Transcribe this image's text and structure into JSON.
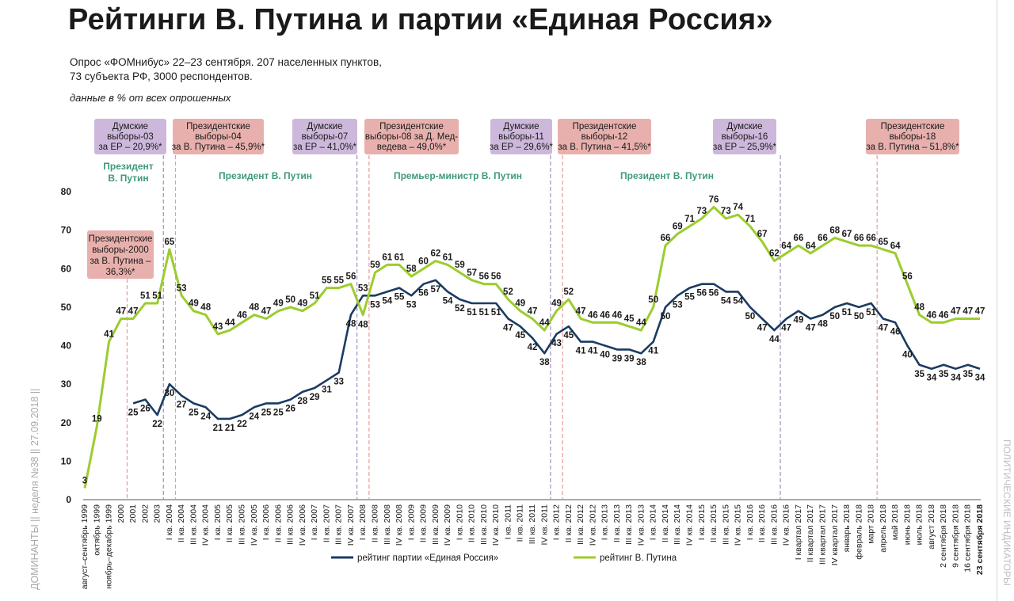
{
  "page": {
    "title": "Рейтинги В. Путина и партии «Единая Россия»",
    "subtitle_line1": "Опрос «ФОМнибус» 22–23 сентября. 207 населенных пунктов,",
    "subtitle_line2": "73 субъекта РФ, 3000 респондентов.",
    "units_note": "данные в % от всех опрошенных",
    "side_left": "ДОМИНАНТЫ || неделя №38 || 27.09.2018 ||",
    "side_right": "ПОЛИТИЧЕСКИЕ ИНДИКАТОРЫ"
  },
  "colors": {
    "er": "#1b3b63",
    "putin": "#9ccc2e",
    "duma_box": "#cdb8dc",
    "pres_box": "#e8b0ad",
    "duma_line": "#9c8fc0",
    "pres_line": "#e89a9a",
    "period_text": "#3f9a7c"
  },
  "chart_data": {
    "type": "line",
    "ylim": [
      0,
      80
    ],
    "yticks": [
      0,
      10,
      20,
      30,
      40,
      50,
      60,
      70,
      80
    ],
    "x_labels": [
      "август–сентябрь 1999",
      "октябрь 1999",
      "ноябрь–декабрь 1999",
      "2000",
      "2001",
      "2002",
      "2003",
      "I кв. 2004",
      "II кв. 2004",
      "III кв. 2004",
      "IV кв. 2004",
      "I кв. 2005",
      "II кв. 2005",
      "III кв. 2005",
      "IV кв. 2005",
      "I кв. 2006",
      "II кв. 2006",
      "III кв. 2006",
      "IV кв. 2006",
      "I кв. 2007",
      "II кв. 2007",
      "III кв. 2007",
      "IV кв. 2007",
      "I кв. 2008",
      "II кв. 2008",
      "III кв. 2008",
      "IV кв. 2008",
      "I кв. 2009",
      "II кв. 2009",
      "III кв. 2009",
      "IV кв. 2009",
      "I кв. 2010",
      "II кв. 2010",
      "III кв. 2010",
      "IV кв. 2010",
      "I кв. 2011",
      "II кв. 2011",
      "III кв. 2011",
      "IV кв. 2011",
      "I кв. 2012",
      "II кв. 2012",
      "III кв. 2012",
      "IV кв. 2012",
      "I кв. 2013",
      "II кв. 2013",
      "III кв. 2013",
      "IV кв. 2013",
      "I кв. 2014",
      "II кв. 2014",
      "III кв. 2014",
      "IV кв. 2014",
      "I кв. 2015",
      "II кв. 2015",
      "III кв. 2015",
      "IV кв. 2015",
      "I кв. 2016",
      "II кв. 2016",
      "III кв. 2016",
      "IV кв. 2016",
      "I квартал 2017",
      "II квартал 2017",
      "III квартал 2017",
      "IV квартал 2017",
      "январь 2018",
      "февраль 2018",
      "март 2018",
      "апрель 2018",
      "май 2018",
      "июнь 2018",
      "июль 2018",
      "август 2018",
      "2 сентября 2018",
      "9 сентября 2018",
      "16 сентября 2018",
      "23 сентября 2018"
    ],
    "series": [
      {
        "name": "рейтинг партии «Единая Россия»",
        "color": "#1b3b63",
        "values": [
          null,
          null,
          null,
          null,
          25,
          26,
          22,
          30,
          27,
          25,
          24,
          21,
          21,
          22,
          24,
          25,
          25,
          26,
          28,
          29,
          31,
          33,
          48,
          53,
          53,
          54,
          55,
          53,
          56,
          57,
          54,
          52,
          51,
          51,
          51,
          47,
          45,
          42,
          38,
          43,
          45,
          41,
          41,
          40,
          39,
          39,
          38,
          41,
          50,
          53,
          55,
          56,
          56,
          54,
          54,
          50,
          47,
          44,
          47,
          49,
          47,
          48,
          50,
          51,
          50,
          51,
          47,
          46,
          40,
          35,
          34,
          35,
          34,
          35,
          34
        ]
      },
      {
        "name": "рейтинг В. Путина",
        "color": "#9ccc2e",
        "values": [
          3,
          19,
          41,
          47,
          47,
          51,
          51,
          65,
          53,
          49,
          48,
          43,
          44,
          46,
          48,
          47,
          49,
          50,
          49,
          51,
          55,
          55,
          56,
          48,
          59,
          61,
          61,
          58,
          60,
          62,
          61,
          59,
          57,
          56,
          56,
          52,
          49,
          47,
          44,
          49,
          52,
          47,
          46,
          46,
          46,
          45,
          44,
          50,
          66,
          69,
          71,
          73,
          76,
          73,
          74,
          71,
          67,
          62,
          64,
          66,
          64,
          66,
          68,
          67,
          66,
          66,
          65,
          64,
          56,
          48,
          46,
          46,
          47,
          47,
          47
        ]
      }
    ],
    "events": [
      {
        "type": "duma",
        "line": "Думские выборы-03",
        "result": "за ЕР – 20,9%*"
      },
      {
        "type": "pres",
        "line": "Президентские выборы-04",
        "result": "за В. Путина – 45,9%*"
      },
      {
        "type": "duma",
        "line": "Думские выборы-07",
        "result": "за ЕР – 41,0%*"
      },
      {
        "type": "pres",
        "line": "Президентские выборы-08 за Д. Медведева",
        "result": "– 49,0%*"
      },
      {
        "type": "duma",
        "line": "Думские выборы-11",
        "result": "за ЕР – 29,6%*"
      },
      {
        "type": "pres",
        "line": "Президентские выборы-12",
        "result": "за В. Путина – 41,5%*"
      },
      {
        "type": "duma",
        "line": "Думские выборы-16",
        "result": "за ЕР – 25,9%*"
      },
      {
        "type": "pres",
        "line": "Президентские выборы-18",
        "result": "за В. Путина – 51,8%*"
      },
      {
        "type": "pres",
        "line": "Президентские выборы-2000",
        "result": "за В. Путина – 36,3%*"
      }
    ],
    "periods": [
      {
        "label": "Президент В. Путин"
      },
      {
        "label": "Президент В. Путин"
      },
      {
        "label": "Премьер-министр В. Путин"
      },
      {
        "label": "Президент В. Путин"
      }
    ]
  }
}
